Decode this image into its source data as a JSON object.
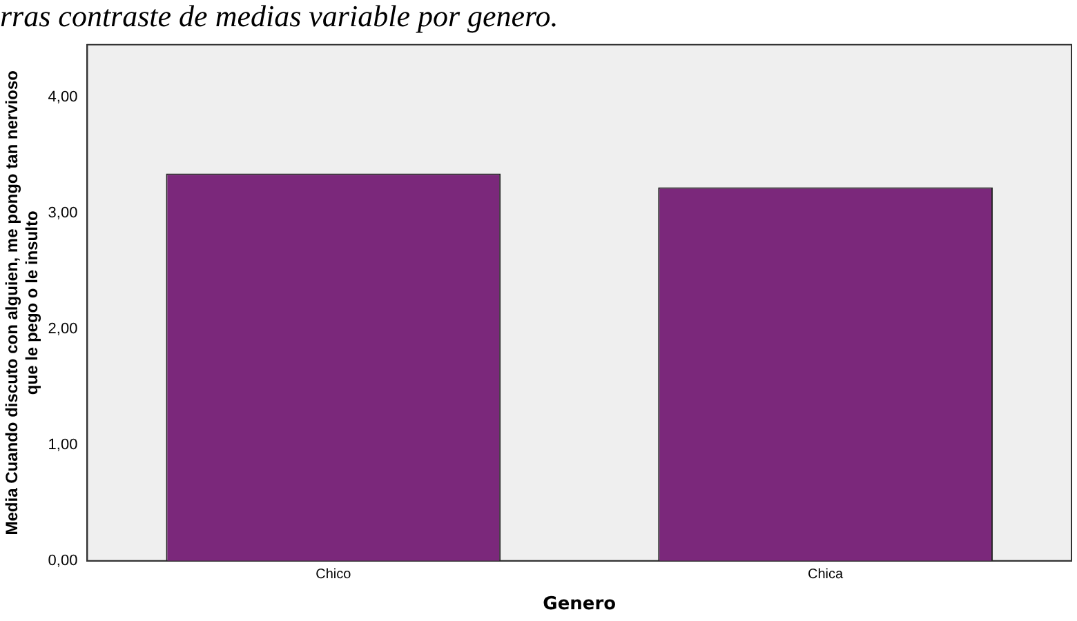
{
  "chart_data": {
    "type": "bar",
    "title": "rras contraste de medias variable por genero.",
    "xlabel": "Genero",
    "ylabel": "Media Cuando discuto con alguien, me pongo tan nervioso que le pego o le insulto",
    "categories": [
      "Chico",
      "Chica"
    ],
    "values": [
      3.34,
      3.22
    ],
    "color": "#7b287b",
    "ylim": [
      0,
      4.45
    ],
    "yticks": [
      {
        "value": 0,
        "label": "0,00"
      },
      {
        "value": 1,
        "label": "1,00"
      },
      {
        "value": 2,
        "label": "2,00"
      },
      {
        "value": 3,
        "label": "3,00"
      },
      {
        "value": 4,
        "label": "4,00"
      }
    ],
    "grid": false,
    "legend": false
  }
}
